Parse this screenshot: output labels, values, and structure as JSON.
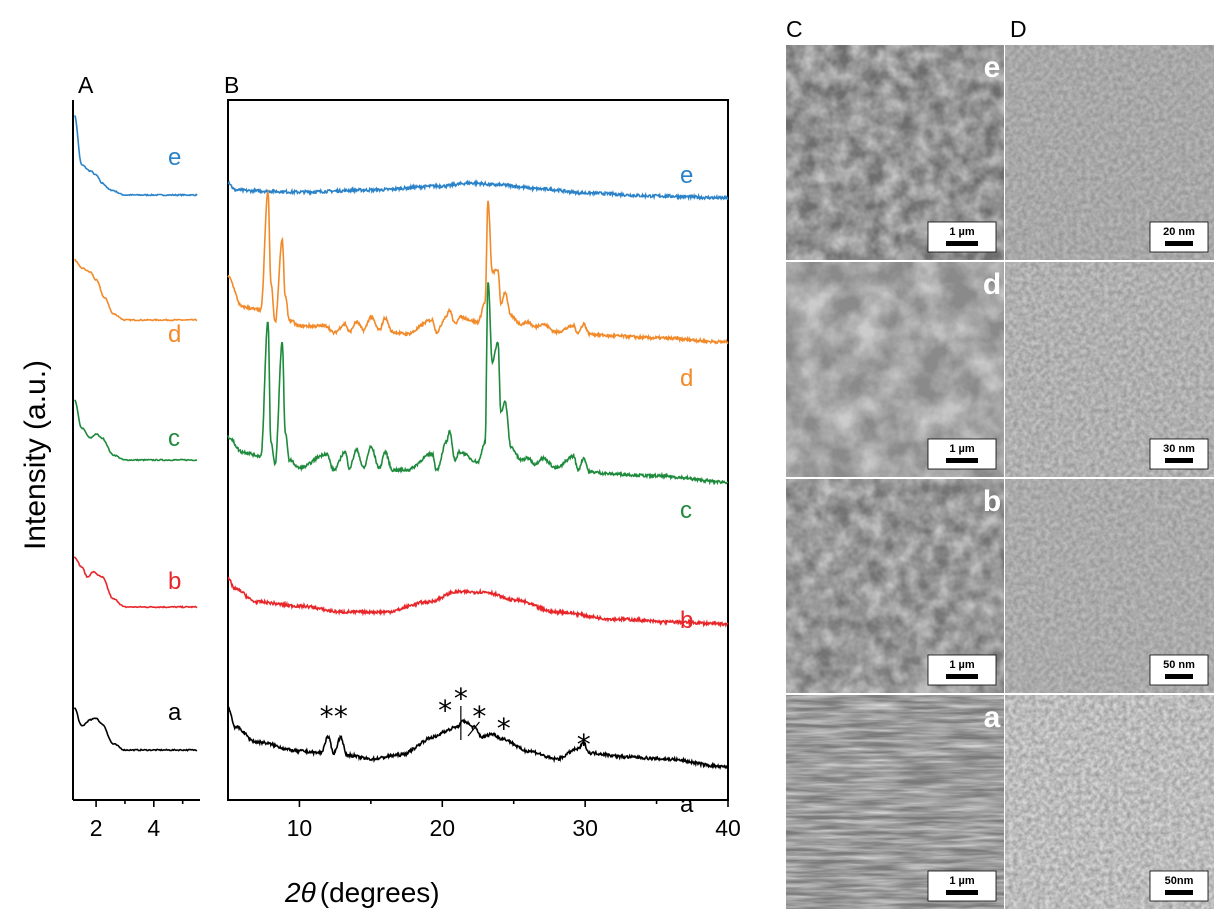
{
  "panel_letters": {
    "A": "A",
    "B": "B",
    "C": "C",
    "D": "D"
  },
  "y_axis_label": "Intensity (a.u.)",
  "x_axis_label_symbol": "2θ",
  "x_axis_label_unit": "(degrees)",
  "colors": {
    "a": "#000000",
    "b": "#e8262a",
    "c": "#1e8a3c",
    "d": "#f28a2a",
    "e": "#2a82c8"
  },
  "chart_data": [
    {
      "panel": "A",
      "type": "line",
      "xlim": [
        1.2,
        5.6
      ],
      "ticks": [
        2,
        4
      ],
      "tick_labels": [
        "2",
        "4"
      ],
      "series": [
        {
          "name": "e",
          "baseline": 195,
          "x": [
            1.25,
            1.5,
            1.8,
            2.0,
            2.2,
            2.5,
            3.0,
            4.0,
            5.5
          ],
          "y": [
            80,
            30,
            24,
            20,
            12,
            5,
            0,
            0,
            0
          ]
        },
        {
          "name": "d",
          "baseline": 320,
          "x": [
            1.25,
            1.5,
            1.8,
            2.0,
            2.3,
            2.6,
            3.0,
            4.0,
            5.5
          ],
          "y": [
            60,
            52,
            48,
            40,
            22,
            6,
            0,
            0,
            0
          ]
        },
        {
          "name": "c",
          "baseline": 460,
          "x": [
            1.25,
            1.5,
            1.8,
            2.0,
            2.2,
            2.6,
            3.0,
            4.0,
            5.5
          ],
          "y": [
            60,
            32,
            22,
            26,
            22,
            5,
            0,
            0,
            0
          ]
        },
        {
          "name": "b",
          "baseline": 607,
          "x": [
            1.25,
            1.5,
            1.7,
            1.9,
            2.2,
            2.6,
            3.0,
            4.0,
            5.5
          ],
          "y": [
            50,
            40,
            30,
            35,
            30,
            8,
            0,
            0,
            0
          ]
        },
        {
          "name": "a",
          "baseline": 750,
          "x": [
            1.25,
            1.5,
            1.8,
            2.0,
            2.2,
            2.6,
            3.0,
            4.0,
            5.5
          ],
          "y": [
            42,
            24,
            30,
            32,
            26,
            6,
            0,
            0,
            0
          ]
        }
      ],
      "curve_labels": [
        "e",
        "d",
        "c",
        "b",
        "a"
      ]
    },
    {
      "panel": "B",
      "type": "line",
      "xlim": [
        5,
        40
      ],
      "ticks": [
        10,
        20,
        30,
        40
      ],
      "tick_labels": [
        "10",
        "20",
        "30",
        "40"
      ],
      "series": [
        {
          "name": "e",
          "baseline": 198,
          "x": [
            5,
            5.5,
            7,
            10,
            15,
            20,
            22,
            24,
            27,
            30,
            35,
            40
          ],
          "y": [
            16,
            8,
            7,
            6,
            8,
            12,
            15,
            13,
            9,
            5,
            2,
            0
          ]
        },
        {
          "name": "d",
          "baseline": 342,
          "x": [
            5,
            6,
            7.3,
            7.8,
            8.0,
            8.3,
            8.8,
            9.0,
            9.3,
            10,
            11.9,
            12.4,
            13.2,
            13.5,
            14.0,
            14.5,
            15.0,
            15.6,
            16.0,
            16.5,
            17.5,
            19.3,
            19.6,
            20.3,
            20.5,
            20.9,
            21.2,
            22.5,
            23.0,
            23.2,
            23.5,
            23.9,
            24.1,
            24.4,
            24.8,
            25.5,
            26.0,
            26.5,
            27.0,
            28.0,
            29.2,
            29.5,
            29.9,
            30.3,
            32,
            35,
            40
          ],
          "y": [
            65,
            35,
            32,
            150,
            60,
            20,
            102,
            46,
            22,
            16,
            16,
            9,
            18,
            10,
            20,
            12,
            25,
            12,
            24,
            10,
            8,
            22,
            10,
            26,
            32,
            18,
            25,
            20,
            40,
            140,
            70,
            72,
            38,
            50,
            26,
            18,
            20,
            15,
            18,
            10,
            16,
            9,
            18,
            8,
            6,
            4,
            0
          ]
        },
        {
          "name": "c",
          "baseline": 482,
          "x": [
            5,
            6,
            7.3,
            7.8,
            8.0,
            8.3,
            8.8,
            9.0,
            9.3,
            10,
            11.9,
            12.4,
            13.2,
            13.5,
            14.0,
            14.5,
            15.0,
            15.6,
            16.0,
            16.5,
            17.5,
            19.3,
            19.6,
            20.3,
            20.5,
            20.9,
            21.2,
            22.5,
            23.0,
            23.2,
            23.5,
            23.9,
            24.1,
            24.4,
            24.8,
            25.5,
            26.0,
            26.5,
            27.0,
            28.0,
            29.2,
            29.5,
            29.9,
            30.3,
            32,
            35,
            40
          ],
          "y": [
            45,
            30,
            26,
            160,
            40,
            18,
            140,
            50,
            22,
            14,
            28,
            12,
            30,
            14,
            32,
            14,
            35,
            14,
            30,
            12,
            12,
            28,
            12,
            40,
            50,
            22,
            30,
            20,
            40,
            200,
            120,
            140,
            70,
            80,
            35,
            22,
            24,
            18,
            24,
            14,
            26,
            12,
            24,
            10,
            8,
            6,
            0
          ]
        },
        {
          "name": "b",
          "baseline": 624,
          "x": [
            5,
            5.5,
            7,
            10,
            13,
            16,
            19,
            21,
            23,
            25,
            28,
            32,
            36,
            40
          ],
          "y": [
            45,
            35,
            22,
            18,
            12,
            12,
            22,
            32,
            32,
            24,
            12,
            5,
            2,
            0
          ]
        },
        {
          "name": "a",
          "baseline": 767,
          "x": [
            5,
            5.5,
            7,
            10,
            11.5,
            12,
            12.4,
            12.9,
            13.3,
            15,
            17,
            19.5,
            20.2,
            21,
            21.5,
            22.2,
            22.8,
            23.5,
            24.2,
            26,
            28,
            29.5,
            29.9,
            30.3,
            33,
            35.5,
            40
          ],
          "y": [
            60,
            40,
            25,
            16,
            14,
            30,
            14,
            30,
            12,
            8,
            12,
            30,
            36,
            40,
            46,
            40,
            30,
            33,
            28,
            16,
            8,
            18,
            24,
            14,
            10,
            8,
            0
          ]
        }
      ],
      "curve_labels": [
        "e",
        "d",
        "c",
        "b",
        "a"
      ],
      "annotations": [
        "*",
        "*",
        "*",
        "*",
        "*",
        "*",
        "*"
      ]
    }
  ],
  "images": [
    {
      "label": "e",
      "scale_left": "1 µm",
      "scale_right": "20 nm"
    },
    {
      "label": "d",
      "scale_left": "1 µm",
      "scale_right": "30 nm"
    },
    {
      "label": "b",
      "scale_left": "1 µm",
      "scale_right": "50 nm"
    },
    {
      "label": "a",
      "scale_left": "1 µm",
      "scale_right": "50nm"
    }
  ]
}
